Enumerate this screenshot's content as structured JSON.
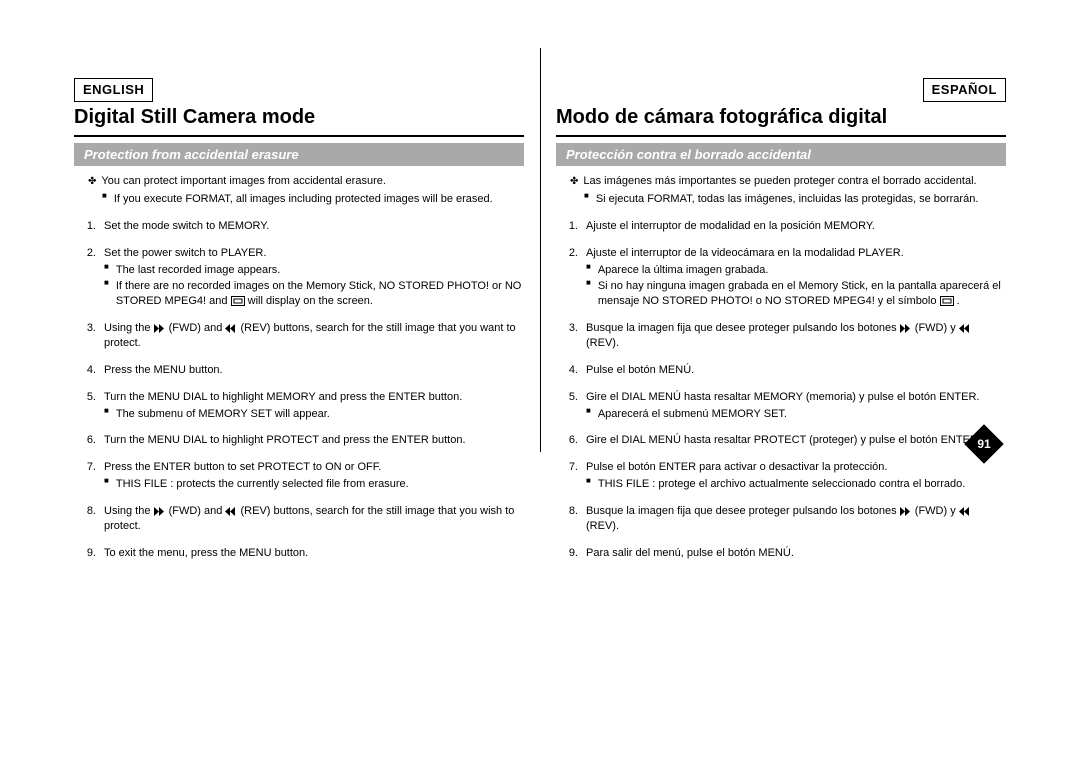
{
  "colors": {
    "background": "#ffffff",
    "text": "#000000",
    "subtitle_bg": "#a9a9a9",
    "subtitle_text": "#ffffff"
  },
  "typography": {
    "body_fontsize_pt": 8,
    "title_fontsize_pt": 15,
    "subtitle_fontsize_pt": 10,
    "lang_badge_fontsize_pt": 10
  },
  "page_number": "91",
  "icons": {
    "clover": "✤",
    "square": "■",
    "fwd": "fast-forward-icon",
    "rev": "rewind-icon",
    "camera": "camera-frame-icon"
  },
  "left": {
    "lang": "ENGLISH",
    "title": "Digital Still Camera mode",
    "subtitle": "Protection from accidental erasure",
    "intro_lead": "You can protect important images from accidental erasure.",
    "intro_sub": "If you execute FORMAT, all images including protected images will be erased.",
    "steps": [
      {
        "n": "1.",
        "body": "Set the mode switch to MEMORY.",
        "notes": []
      },
      {
        "n": "2.",
        "body": "Set the power switch to PLAYER.",
        "notes": [
          "The last recorded image appears.",
          "If there are no recorded images on the Memory Stick, NO STORED PHOTO! or NO STORED MPEG4! and __CAM__ will display on the screen."
        ]
      },
      {
        "n": "3.",
        "body": "Using the __FWD__ (FWD) and __REV__ (REV) buttons, search for the still image that you want to protect.",
        "notes": []
      },
      {
        "n": "4.",
        "body": "Press the MENU button.",
        "notes": []
      },
      {
        "n": "5.",
        "body": "Turn the MENU DIAL to highlight MEMORY and press the ENTER button.",
        "notes": [
          "The submenu of MEMORY SET will appear."
        ]
      },
      {
        "n": "6.",
        "body": "Turn the MENU DIAL to highlight PROTECT and press the ENTER button.",
        "notes": []
      },
      {
        "n": "7.",
        "body": "Press the ENTER button to set PROTECT to ON or OFF.",
        "notes": [
          "THIS FILE : protects the currently selected file from erasure."
        ]
      },
      {
        "n": "8.",
        "body": "Using the __FWD__ (FWD) and __REV__ (REV) buttons, search for the still image that you wish to protect.",
        "notes": []
      },
      {
        "n": "9.",
        "body": "To exit the menu, press the MENU button.",
        "notes": []
      }
    ]
  },
  "right": {
    "lang": "ESPAÑOL",
    "title": "Modo de cámara fotográfica digital",
    "subtitle": "Protección contra el borrado accidental",
    "intro_lead": "Las imágenes más importantes se pueden proteger contra el borrado accidental.",
    "intro_sub": "Si ejecuta FORMAT, todas las imágenes, incluidas las protegidas, se borrarán.",
    "steps": [
      {
        "n": "1.",
        "body": "Ajuste el interruptor de modalidad en la posición MEMORY.",
        "notes": []
      },
      {
        "n": "2.",
        "body": "Ajuste el interruptor de la videocámara en la modalidad PLAYER.",
        "notes": [
          "Aparece la última imagen grabada.",
          "Si no hay ninguna imagen grabada en el Memory Stick, en la pantalla aparecerá el mensaje NO STORED PHOTO! o NO STORED MPEG4! y el símbolo __CAM__ ."
        ]
      },
      {
        "n": "3.",
        "body": "Busque la imagen fija que desee proteger pulsando los botones __FWD__ (FWD) y __REV__ (REV).",
        "notes": []
      },
      {
        "n": "4.",
        "body": "Pulse el botón MENÚ.",
        "notes": []
      },
      {
        "n": "5.",
        "body": "Gire el DIAL MENÚ hasta resaltar MEMORY (memoria) y pulse el botón ENTER.",
        "notes": [
          "Aparecerá el submenú MEMORY SET."
        ]
      },
      {
        "n": "6.",
        "body": "Gire el DIAL MENÚ hasta resaltar PROTECT (proteger) y pulse el botón ENTER.",
        "notes": []
      },
      {
        "n": "7.",
        "body": "Pulse el botón ENTER para activar o desactivar la protección.",
        "notes": [
          "THIS FILE : protege el archivo actualmente seleccionado contra el borrado."
        ]
      },
      {
        "n": "8.",
        "body": "Busque la imagen fija que desee proteger pulsando los botones __FWD__ (FWD) y __REV__ (REV).",
        "notes": []
      },
      {
        "n": "9.",
        "body": "Para salir del menú, pulse el botón MENÚ.",
        "notes": []
      }
    ]
  }
}
